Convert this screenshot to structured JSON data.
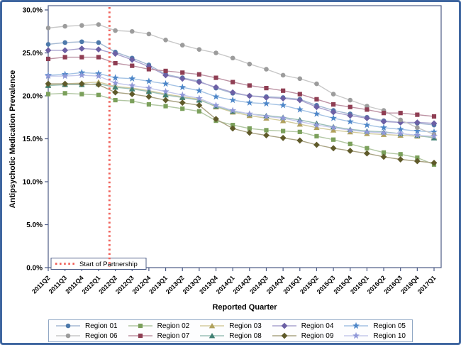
{
  "chart_data": {
    "type": "line",
    "title": "",
    "xlabel": "Reported Quarter",
    "ylabel": "Antipsychotic Medication Prevalence",
    "x": [
      "2011Q2",
      "2011Q3",
      "2011Q4",
      "2012Q1",
      "2012Q2",
      "2012Q3",
      "2012Q4",
      "2013Q1",
      "2013Q2",
      "2013Q3",
      "2013Q4",
      "2014Q1",
      "2014Q2",
      "2014Q3",
      "2014Q4",
      "2015Q1",
      "2015Q2",
      "2015Q3",
      "2015Q4",
      "2016Q1",
      "2016Q2",
      "2016Q3",
      "2016Q4",
      "2017Q1"
    ],
    "ylim": [
      0,
      30
    ],
    "y_tick_values": [
      0,
      5,
      10,
      15,
      20,
      25,
      30
    ],
    "y_tick_labels": [
      "0.0%",
      "5.0%",
      "10.0%",
      "15.0%",
      "20.0%",
      "25.0%",
      "30.0%"
    ],
    "grid": false,
    "legend_position": "bottom",
    "series": [
      {
        "name": "Region 01",
        "marker": "circle",
        "color": "#4d79ab",
        "line_color": "#a6bad3",
        "values": [
          26.0,
          26.2,
          26.3,
          26.2,
          25.1,
          24.4,
          23.6,
          22.5,
          22.1,
          21.7,
          20.9,
          20.3,
          20.0,
          19.9,
          19.8,
          19.6,
          18.9,
          18.3,
          17.9,
          17.5,
          17.1,
          16.9,
          16.8,
          16.6
        ]
      },
      {
        "name": "Region 02",
        "marker": "square",
        "color": "#7ba05b",
        "line_color": "#b2c7a3",
        "values": [
          20.2,
          20.3,
          20.2,
          20.1,
          19.5,
          19.4,
          19.0,
          18.8,
          18.5,
          18.2,
          17.1,
          16.6,
          16.2,
          16.0,
          15.9,
          15.8,
          15.3,
          14.9,
          14.4,
          13.9,
          13.4,
          13.2,
          12.8,
          12.0
        ]
      },
      {
        "name": "Region 03",
        "marker": "triangle",
        "color": "#b0a15c",
        "line_color": "#d3cb9d",
        "values": [
          21.3,
          21.4,
          21.5,
          21.6,
          21.1,
          20.9,
          20.6,
          20.2,
          19.9,
          19.6,
          18.7,
          18.1,
          17.7,
          17.4,
          17.1,
          16.7,
          16.3,
          16.0,
          15.8,
          15.6,
          15.5,
          15.4,
          15.3,
          15.2
        ]
      },
      {
        "name": "Region 04",
        "marker": "diamond",
        "color": "#6c60a5",
        "line_color": "#aaa3cf",
        "values": [
          25.3,
          25.3,
          25.5,
          25.4,
          24.9,
          24.2,
          23.4,
          22.4,
          22.0,
          21.6,
          21.0,
          20.4,
          20.0,
          19.8,
          19.7,
          19.5,
          18.7,
          18.1,
          17.7,
          17.4,
          17.0,
          16.9,
          16.9,
          16.8
        ]
      },
      {
        "name": "Region 05",
        "marker": "star",
        "color": "#4d86c8",
        "line_color": "#a3c2e4",
        "values": [
          22.4,
          22.5,
          22.7,
          22.6,
          22.1,
          22.0,
          21.7,
          21.4,
          21.0,
          20.6,
          19.9,
          19.5,
          19.2,
          19.1,
          18.9,
          18.4,
          17.9,
          17.4,
          17.0,
          16.6,
          16.3,
          16.1,
          15.9,
          15.8
        ]
      },
      {
        "name": "Region 06",
        "marker": "circle",
        "color": "#9c9c9c",
        "line_color": "#c8c8c8",
        "values": [
          27.9,
          28.1,
          28.2,
          28.3,
          27.6,
          27.5,
          27.2,
          26.5,
          25.9,
          25.4,
          25.0,
          24.4,
          23.7,
          23.1,
          22.4,
          22.0,
          21.4,
          20.2,
          19.5,
          18.8,
          18.3,
          17.2,
          16.3,
          15.5
        ]
      },
      {
        "name": "Region 07",
        "marker": "square",
        "color": "#8f3e53",
        "line_color": "#bd93a4",
        "values": [
          24.3,
          24.5,
          24.5,
          24.5,
          23.8,
          23.5,
          23.1,
          22.9,
          22.7,
          22.5,
          22.1,
          21.6,
          21.2,
          20.9,
          20.6,
          20.2,
          19.6,
          19.0,
          18.7,
          18.4,
          18.0,
          18.0,
          17.8,
          17.6
        ]
      },
      {
        "name": "Region 08",
        "marker": "triangle",
        "color": "#418073",
        "line_color": "#9cc0b7",
        "values": [
          21.2,
          21.3,
          21.3,
          21.4,
          21.0,
          20.8,
          20.5,
          20.1,
          19.8,
          19.5,
          18.8,
          18.2,
          17.9,
          17.7,
          17.5,
          17.2,
          16.8,
          16.4,
          16.1,
          15.9,
          15.8,
          15.6,
          15.4,
          15.1
        ]
      },
      {
        "name": "Region 09",
        "marker": "diamond",
        "color": "#5f5a2a",
        "line_color": "#a9a383",
        "values": [
          21.4,
          21.4,
          21.4,
          21.3,
          20.4,
          20.2,
          19.9,
          19.5,
          19.2,
          18.9,
          17.3,
          16.2,
          15.7,
          15.4,
          15.1,
          14.8,
          14.3,
          13.9,
          13.6,
          13.3,
          12.9,
          12.6,
          12.4,
          12.2
        ]
      },
      {
        "name": "Region 10",
        "marker": "star",
        "color": "#9098d8",
        "line_color": "#c5c9ec",
        "values": [
          22.3,
          22.3,
          22.4,
          22.3,
          21.5,
          21.2,
          20.9,
          20.5,
          20.1,
          19.7,
          18.9,
          18.3,
          17.9,
          17.6,
          17.4,
          17.0,
          16.6,
          16.3,
          16.0,
          15.8,
          15.7,
          15.6,
          15.4,
          15.3
        ]
      }
    ],
    "reference_line": {
      "label": "Start of Partnership",
      "color": "#f0655e",
      "orientation": "vertical",
      "x_index": 3.65
    }
  },
  "colors": {
    "axis": "#4e5c85",
    "outer_border": "#3f66a0",
    "legend_border": "#8ea6c4",
    "tick_text": "#000000"
  }
}
